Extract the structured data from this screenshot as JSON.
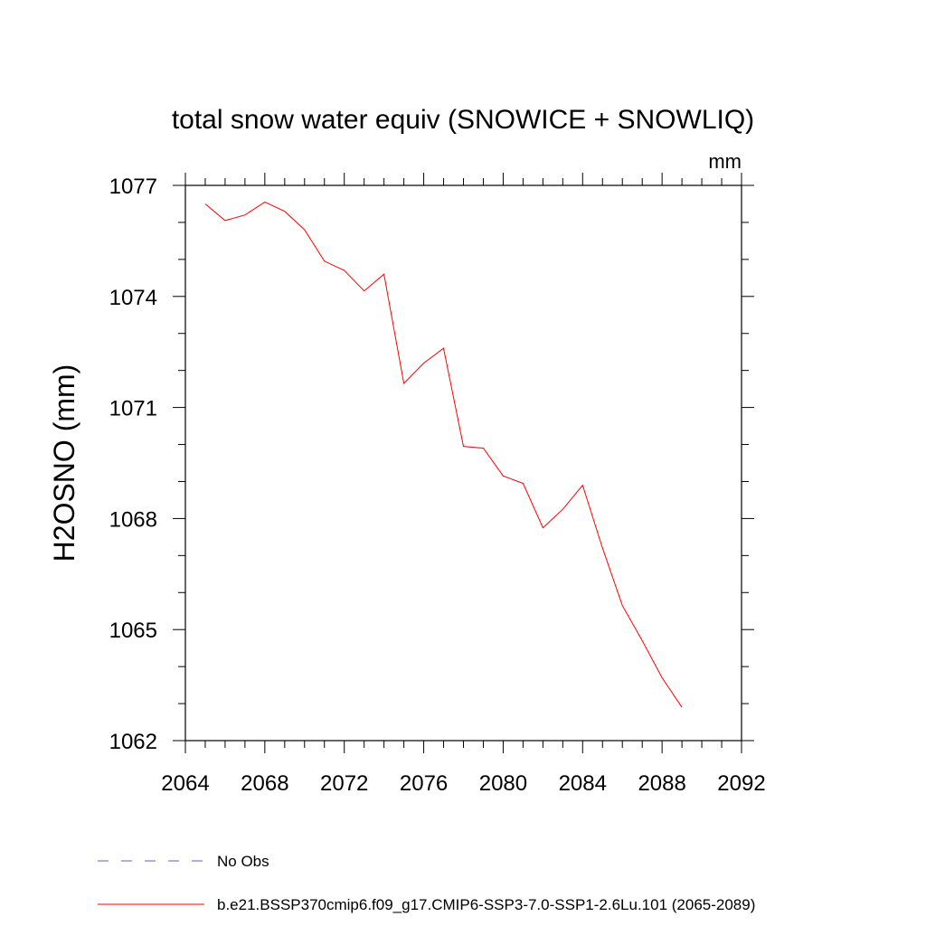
{
  "chart_data": {
    "type": "line",
    "title": "total snow water equiv (SNOWICE + SNOWLIQ)",
    "units": "mm",
    "ylabel": "H2OSNO  (mm)",
    "xlabel": "",
    "xlim": [
      2064,
      2092
    ],
    "ylim": [
      1062,
      1077
    ],
    "xticks": [
      2064,
      2068,
      2072,
      2076,
      2080,
      2084,
      2088,
      2092
    ],
    "yticks": [
      1062,
      1065,
      1068,
      1071,
      1074,
      1077
    ],
    "x_minor_step": 1,
    "y_minor_step": 1,
    "series": [
      {
        "name": "b.e21.BSSP370cmip6.f09_g17.CMIP6-SSP3-7.0-SSP1-2.6Lu.101 (2065-2089)",
        "color": "#ff0000",
        "style": "solid",
        "x": [
          2065,
          2066,
          2067,
          2068,
          2069,
          2070,
          2071,
          2072,
          2073,
          2074,
          2075,
          2076,
          2077,
          2078,
          2079,
          2080,
          2081,
          2082,
          2083,
          2084,
          2085,
          2086,
          2087,
          2088,
          2089
        ],
        "values": [
          1076.5,
          1076.05,
          1076.2,
          1076.55,
          1076.3,
          1075.8,
          1074.95,
          1074.7,
          1074.15,
          1074.6,
          1071.65,
          1072.2,
          1072.6,
          1069.95,
          1069.9,
          1069.15,
          1068.95,
          1067.75,
          1068.25,
          1068.9,
          1067.2,
          1065.65,
          1064.7,
          1063.7,
          1062.9
        ]
      }
    ],
    "legend": [
      {
        "label": "No Obs",
        "color": "#6a5acd",
        "style": "dashed"
      },
      {
        "label": "b.e21.BSSP370cmip6.f09_g17.CMIP6-SSP3-7.0-SSP1-2.6Lu.101 (2065-2089)",
        "color": "#ff0000",
        "style": "solid"
      }
    ]
  }
}
